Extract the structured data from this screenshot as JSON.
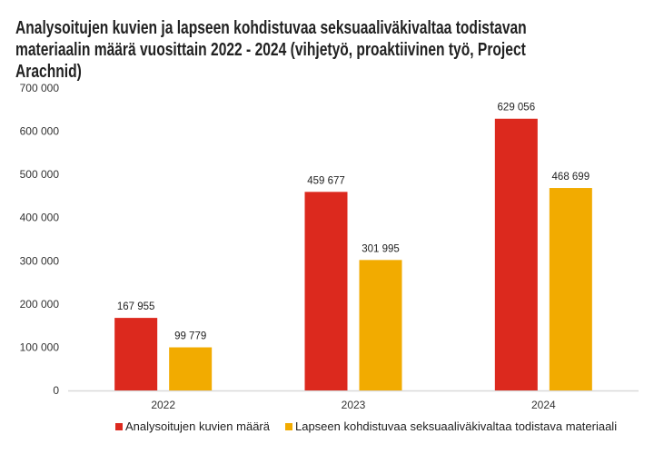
{
  "chart_data": {
    "type": "bar",
    "title": "Analysoitujen kuvien ja lapseen kohdistuvaa seksuaaliväkivaltaa todistavan materiaalin määrä vuosittain 2022 - 2024 (vihjetyö, proaktiivinen työ, Project Arachnid)",
    "categories": [
      "2022",
      "2023",
      "2024"
    ],
    "series": [
      {
        "name": "Analysoitujen kuvien määrä",
        "values": [
          167955,
          459677,
          629056
        ],
        "labels": [
          "167 955",
          "459 677",
          "629 056"
        ],
        "color": "#dc291e"
      },
      {
        "name": "Lapseen kohdistuvaa seksuaaliväkivaltaa todistava materiaali",
        "values": [
          99779,
          301995,
          468699
        ],
        "labels": [
          "99 779",
          "301 995",
          "468 699"
        ],
        "color": "#f2ab00"
      }
    ],
    "ylim": [
      0,
      700000
    ],
    "yticks": [
      0,
      100000,
      200000,
      300000,
      400000,
      500000,
      600000,
      700000
    ],
    "ytick_labels": [
      "0",
      "100 000",
      "200 000",
      "300 000",
      "400 000",
      "500 000",
      "600 000",
      "700 000"
    ],
    "xlabel": "",
    "ylabel": "",
    "grid": false,
    "legend": "bottom"
  }
}
